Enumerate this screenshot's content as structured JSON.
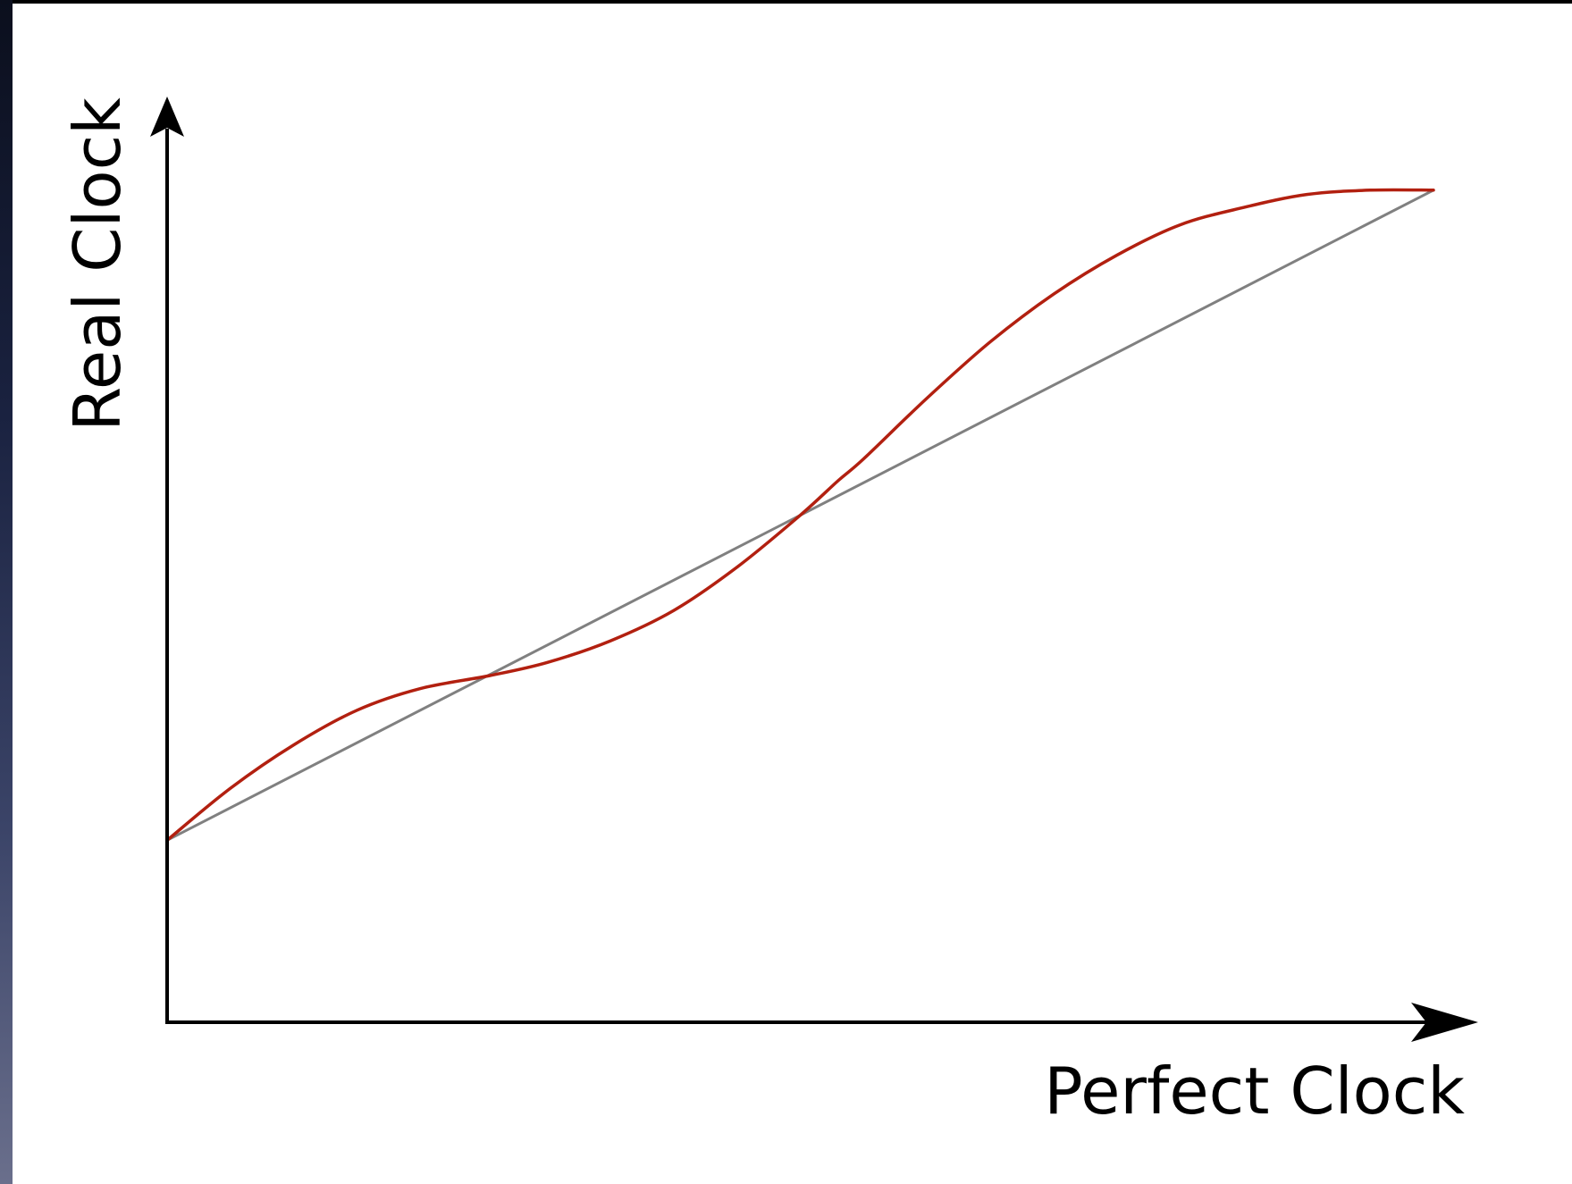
{
  "chart_data": {
    "type": "line",
    "xlabel": "Perfect Clock",
    "ylabel": "Real Clock",
    "xlim": [
      0,
      1
    ],
    "ylim": [
      0,
      1
    ],
    "grid": false,
    "series": [
      {
        "color": "#808080",
        "x": [
          0,
          1
        ],
        "y": [
          0.21,
          0.96
        ]
      },
      {
        "color": "#b22010",
        "x": [
          0,
          0.05,
          0.1,
          0.15,
          0.2,
          0.255,
          0.3,
          0.35,
          0.4,
          0.45,
          0.5,
          0.53,
          0.55,
          0.6,
          0.65,
          0.7,
          0.75,
          0.8,
          0.85,
          0.9,
          0.95,
          1.0
        ],
        "y": [
          0.21,
          0.27,
          0.32,
          0.36,
          0.385,
          0.4,
          0.415,
          0.44,
          0.475,
          0.525,
          0.585,
          0.625,
          0.65,
          0.72,
          0.785,
          0.84,
          0.885,
          0.92,
          0.94,
          0.955,
          0.96,
          0.96
        ]
      }
    ]
  }
}
